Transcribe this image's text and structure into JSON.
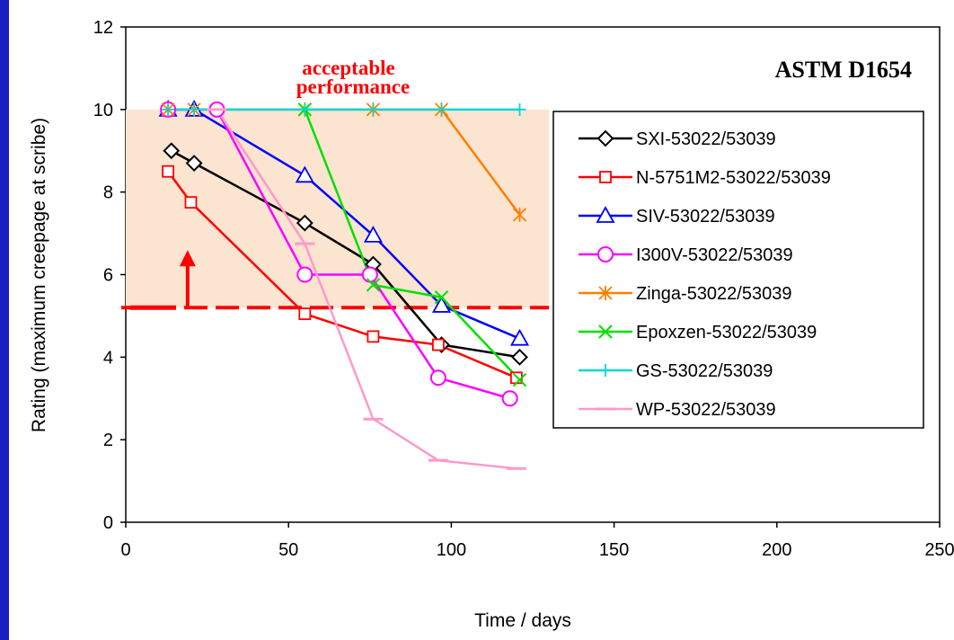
{
  "chart_data": {
    "type": "line",
    "title": "",
    "annotation_standard": "ASTM D1654",
    "annotation_region_line1": "acceptable",
    "annotation_region_line2": "performance",
    "xlabel": "Time / days",
    "ylabel": "Rating (maximum creepage at scribe)",
    "xlim": [
      0,
      250
    ],
    "ylim": [
      0,
      12
    ],
    "xticks": [
      0,
      50,
      100,
      150,
      200,
      250
    ],
    "yticks": [
      0,
      2,
      4,
      6,
      8,
      10,
      12
    ],
    "grid": false,
    "legend_position": "right",
    "acceptable_region": {
      "ymin": 5.2,
      "ymax": 10,
      "xmax": 130,
      "color": "#fbe4d0"
    },
    "threshold_line": {
      "y": 5.2,
      "color": "#ff0000"
    },
    "series": [
      {
        "name": "SXI-53022/53039",
        "color": "#000000",
        "marker": "diamond",
        "x": [
          14,
          21,
          55,
          76,
          97,
          121
        ],
        "y": [
          9.0,
          8.7,
          7.25,
          6.25,
          4.3,
          4.0
        ]
      },
      {
        "name": "N-5751M2-53022/53039",
        "color": "#ff0000",
        "marker": "square",
        "x": [
          13,
          20,
          55,
          76,
          96,
          120
        ],
        "y": [
          8.5,
          7.75,
          5.05,
          4.5,
          4.3,
          3.5
        ]
      },
      {
        "name": "SIV-53022/53039",
        "color": "#0000ff",
        "marker": "triangle",
        "x": [
          13,
          21,
          55,
          76,
          97,
          121
        ],
        "y": [
          10.0,
          10.0,
          8.4,
          6.95,
          5.25,
          4.45
        ]
      },
      {
        "name": "I300V-53022/53039",
        "color": "#ff00ff",
        "marker": "circle",
        "x": [
          13,
          28,
          55,
          75,
          96,
          118
        ],
        "y": [
          10.0,
          10.0,
          6.0,
          6.0,
          3.5,
          3.0
        ]
      },
      {
        "name": "Zinga-53022/53039",
        "color": "#ff7f00",
        "marker": "asterisk",
        "x": [
          13,
          21,
          55,
          76,
          97,
          121
        ],
        "y": [
          10.0,
          10.0,
          10.0,
          10.0,
          10.0,
          7.45
        ]
      },
      {
        "name": "Epoxzen-53022/53039",
        "color": "#00e000",
        "marker": "x",
        "x": [
          55,
          76,
          97,
          121
        ],
        "y": [
          10.0,
          5.75,
          5.45,
          3.45
        ]
      },
      {
        "name": "GS-53022/53039",
        "color": "#00d8d8",
        "marker": "plus",
        "x": [
          13,
          21,
          55,
          76,
          97,
          121
        ],
        "y": [
          10.0,
          10.0,
          10.0,
          10.0,
          10.0,
          10.0
        ]
      },
      {
        "name": "WP-53022/53039",
        "color": "#ff99cc",
        "marker": "dash",
        "x": [
          28,
          55,
          76,
          96,
          120
        ],
        "y": [
          10.0,
          6.75,
          2.5,
          1.5,
          1.3
        ]
      }
    ]
  }
}
